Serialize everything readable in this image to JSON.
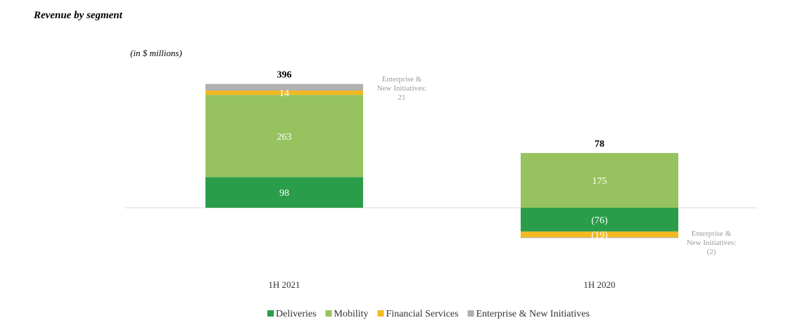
{
  "title": "Revenue by segment",
  "unit_label": "(in $ millions)",
  "colors": {
    "Deliveries": "#2a9d4a",
    "Mobility": "#96c35f",
    "Financial Services": "#f2b922",
    "Enterprise & New Initiatives": "#b0b0b0"
  },
  "chart_data": {
    "type": "bar",
    "stacked": true,
    "categories": [
      "1H 2021",
      "1H 2020"
    ],
    "totals": [
      396,
      78
    ],
    "series": [
      {
        "name": "Deliveries",
        "values": [
          98,
          -76
        ]
      },
      {
        "name": "Mobility",
        "values": [
          263,
          175
        ]
      },
      {
        "name": "Financial Services",
        "values": [
          14,
          -19
        ]
      },
      {
        "name": "Enterprise & New Initiatives",
        "values": [
          21,
          -2
        ]
      }
    ],
    "value_labels": [
      {
        "series": "Deliveries",
        "labels": [
          "98",
          "(76)"
        ]
      },
      {
        "series": "Mobility",
        "labels": [
          "263",
          "175"
        ]
      },
      {
        "series": "Financial Services",
        "labels": [
          "14",
          "(19)"
        ]
      }
    ],
    "callouts": [
      {
        "category": "1H 2021",
        "lines": [
          "Enterprise &",
          "New Initiatives:",
          "21"
        ]
      },
      {
        "category": "1H 2020",
        "lines": [
          "Enterprise &",
          "New Initiatives:",
          "(2)"
        ]
      }
    ],
    "legend_position": "bottom",
    "grid": false
  }
}
